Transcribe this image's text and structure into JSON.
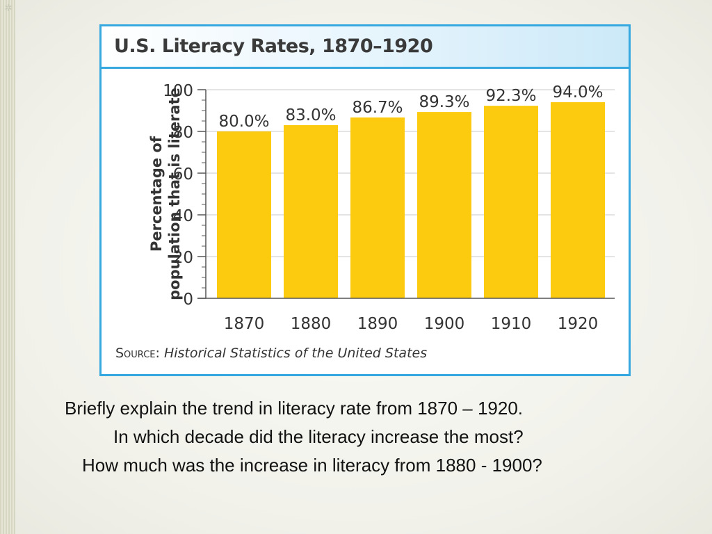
{
  "slide": {
    "corner_glyph": "✲",
    "questions": [
      "Briefly explain the trend in literacy rate from 1870 – 1920.",
      "In which decade did the literacy increase the most?",
      "How much was the increase in literacy from 1880 - 1900?"
    ]
  },
  "chart_data": {
    "type": "bar",
    "title": "U.S. Literacy Rates, 1870–1920",
    "ylabel": [
      "Percentage of",
      "population that is literate"
    ],
    "xlabel": "",
    "categories": [
      "1870",
      "1880",
      "1890",
      "1900",
      "1910",
      "1920"
    ],
    "values": [
      80.0,
      83.0,
      86.7,
      89.3,
      92.3,
      94.0
    ],
    "data_labels": [
      "80.0%",
      "83.0%",
      "86.7%",
      "89.3%",
      "92.3%",
      "94.0%"
    ],
    "ylim": [
      0,
      100
    ],
    "yticks": [
      0,
      20,
      40,
      60,
      80,
      100
    ],
    "grid": "horizontal",
    "bar_color": "#fccb0f",
    "grid_color": "#c8c8c8",
    "frame_color": "#35a8e0",
    "source_label": "Source:",
    "source_text": "Historical Statistics of the United States"
  }
}
